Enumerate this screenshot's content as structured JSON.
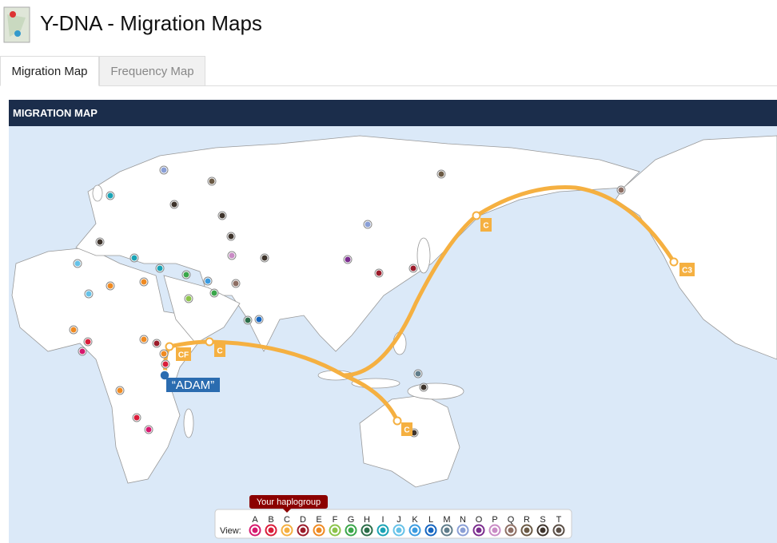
{
  "header": {
    "title": "Y-DNA - Migration Maps"
  },
  "tabs": [
    {
      "label": "Migration Map",
      "active": true
    },
    {
      "label": "Frequency Map",
      "active": false
    }
  ],
  "panel": {
    "title": "MIGRATION MAP"
  },
  "map": {
    "origin_label": "“ADAM”",
    "route_labels": [
      "CF",
      "C",
      "C",
      "C3",
      "C"
    ]
  },
  "legend": {
    "tooltip": "Your haplogroup",
    "view_label": "View:",
    "haplogroups": [
      {
        "letter": "A",
        "color": "#d6186e"
      },
      {
        "letter": "B",
        "color": "#d91d3a"
      },
      {
        "letter": "C",
        "color": "#f5b041"
      },
      {
        "letter": "D",
        "color": "#9b1b2a"
      },
      {
        "letter": "E",
        "color": "#ef8a22"
      },
      {
        "letter": "F",
        "color": "#8bc34a"
      },
      {
        "letter": "G",
        "color": "#3aa64a"
      },
      {
        "letter": "H",
        "color": "#2c6e49"
      },
      {
        "letter": "I",
        "color": "#1aa3b5"
      },
      {
        "letter": "J",
        "color": "#66c2e8"
      },
      {
        "letter": "K",
        "color": "#3b9be0"
      },
      {
        "letter": "L",
        "color": "#1565c0"
      },
      {
        "letter": "M",
        "color": "#607d8b"
      },
      {
        "letter": "N",
        "color": "#8a9fd6"
      },
      {
        "letter": "O",
        "color": "#7b2d8e"
      },
      {
        "letter": "P",
        "color": "#c98bc5"
      },
      {
        "letter": "Q",
        "color": "#8d6e63"
      },
      {
        "letter": "R",
        "color": "#6b5a45"
      },
      {
        "letter": "S",
        "color": "#3e342c"
      },
      {
        "letter": "T",
        "color": "#5a4e45"
      }
    ]
  }
}
